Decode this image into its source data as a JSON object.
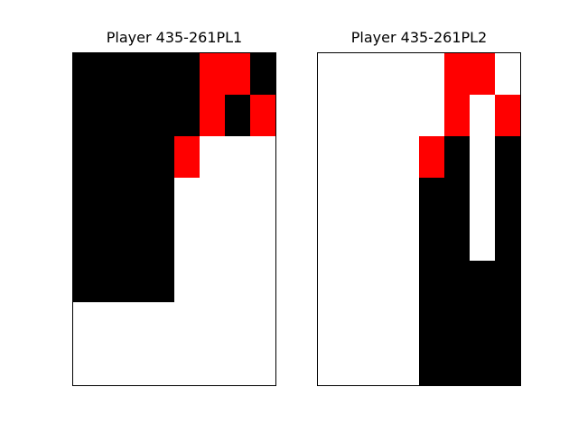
{
  "palette": {
    "B": "#000000",
    "R": "#ff0000",
    "W": "#ffffff"
  },
  "boards": [
    {
      "title": "Player 435-261PL1",
      "rows": [
        "BBBBBRRB",
        "BBBBBRBR",
        "BBBBRWWW",
        "BBBBWWWW",
        "BBBBWWWW",
        "BBBBWWWW",
        "WWWWWWWW",
        "WWWWWWWW"
      ]
    },
    {
      "title": "Player 435-261PL2",
      "rows": [
        "WWWWWRRW",
        "WWWWWRWR",
        "WWWWRBWB",
        "WWWWBBWB",
        "WWWWBBWB",
        "WWWWBBBB",
        "WWWWBBBB",
        "WWWWBBBB"
      ]
    }
  ]
}
